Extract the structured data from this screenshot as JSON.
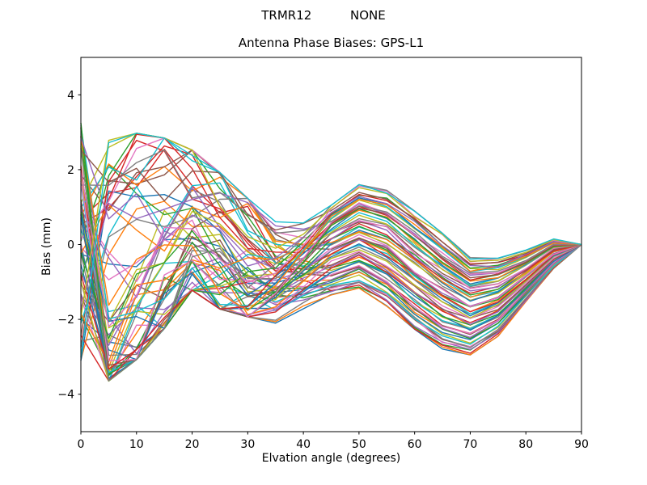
{
  "figure": {
    "suptitle": "TRMR12          NONE",
    "title": "Antenna Phase Biases: GPS-L1",
    "xlabel": "Elvation angle (degrees)",
    "ylabel": "Bias (mm)",
    "background": "#ffffff",
    "frame_color": "#000000"
  },
  "chart_data": {
    "type": "line",
    "suptitle": "TRMR12          NONE",
    "title": "Antenna Phase Biases: GPS-L1",
    "xlabel": "Elvation angle (degrees)",
    "ylabel": "Bias (mm)",
    "xlim": [
      0,
      90
    ],
    "ylim": [
      -5,
      5
    ],
    "x_ticks": [
      0,
      10,
      20,
      30,
      40,
      50,
      60,
      70,
      80,
      90
    ],
    "y_ticks": [
      -4,
      -2,
      0,
      2,
      4
    ],
    "grid": false,
    "legend": "none",
    "x": [
      0,
      5,
      10,
      15,
      20,
      25,
      30,
      35,
      40,
      45,
      50,
      55,
      60,
      65,
      70,
      75,
      80,
      85,
      90
    ],
    "n_series": 70,
    "series_description": "~70 unlabeled antenna phase-bias curves (one per channel), matplotlib default color cycle, sampled every 5 degrees; chaotic crossings below ~35 deg, coherent parallel band above; every curve equals 0 mm at 90 deg",
    "envelope_upper": [
      3.4,
      2.8,
      3.1,
      2.95,
      2.6,
      2.0,
      1.3,
      0.8,
      0.75,
      1.05,
      1.6,
      1.45,
      0.9,
      0.3,
      -0.35,
      -0.35,
      -0.15,
      0.15,
      0.0
    ],
    "envelope_lower": [
      -3.25,
      -3.65,
      -3.2,
      -2.35,
      -1.3,
      -1.8,
      -2.0,
      -2.15,
      -1.75,
      -1.35,
      -1.2,
      -1.65,
      -2.3,
      -2.8,
      -2.95,
      -2.45,
      -1.55,
      -0.65,
      0.0
    ],
    "band_mean": [
      0.08,
      -0.43,
      -0.05,
      0.3,
      0.65,
      0.1,
      -0.35,
      -0.68,
      -0.5,
      -0.15,
      0.2,
      -0.1,
      -0.7,
      -1.25,
      -1.65,
      -1.4,
      -0.85,
      -0.25,
      0.0
    ],
    "colors": [
      "#1f77b4",
      "#ff7f0e",
      "#2ca02c",
      "#d62728",
      "#9467bd",
      "#8c564b",
      "#e377c2",
      "#7f7f7f",
      "#bcbd22",
      "#17becf"
    ]
  }
}
